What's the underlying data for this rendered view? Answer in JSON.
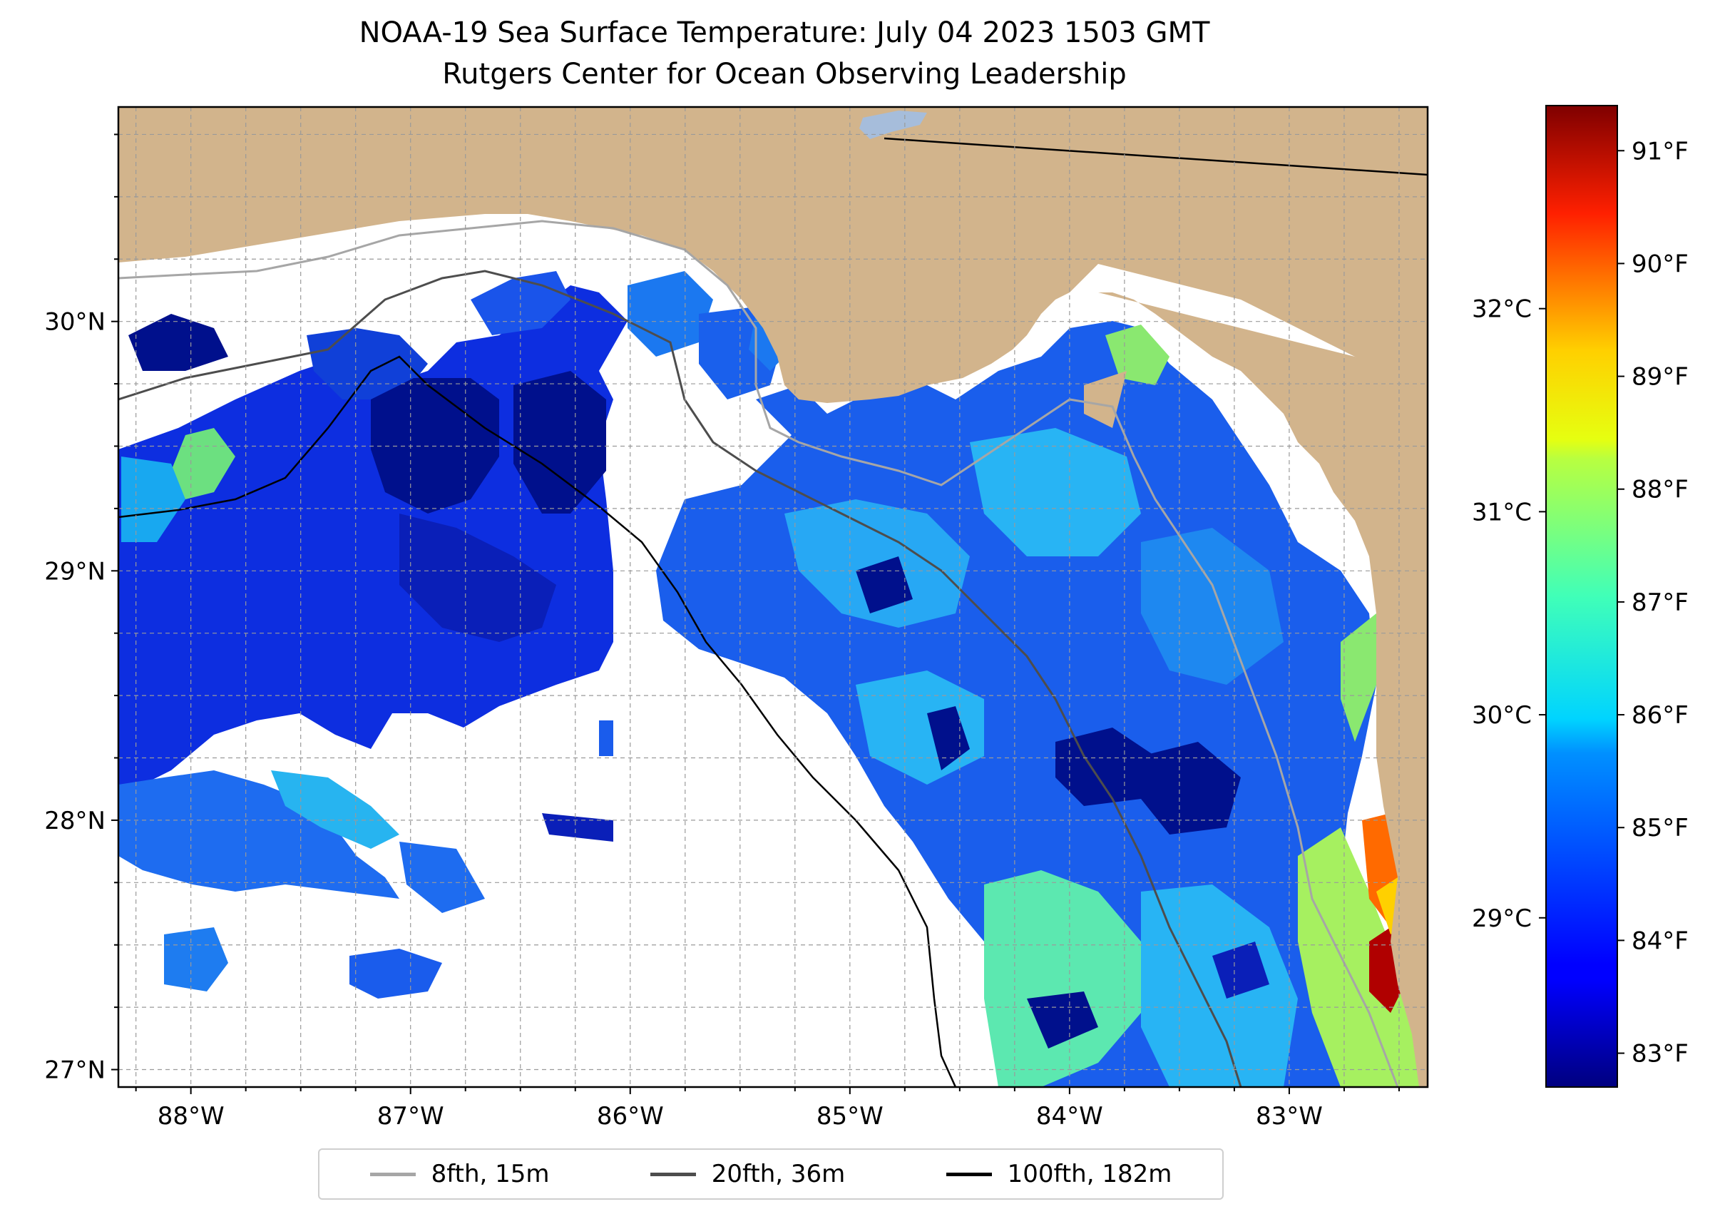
{
  "title": {
    "line1": "NOAA-19 Sea Surface Temperature: July 04 2023 1503 GMT",
    "line2": "Rutgers Center for Ocean Observing Leadership"
  },
  "map": {
    "lon_range": [
      -88.33,
      -82.37
    ],
    "lat_range": [
      26.93,
      30.86
    ],
    "lon_ticks": [
      {
        "value": -88,
        "label": "88°W"
      },
      {
        "value": -87,
        "label": "87°W"
      },
      {
        "value": -86,
        "label": "86°W"
      },
      {
        "value": -85,
        "label": "85°W"
      },
      {
        "value": -84,
        "label": "84°W"
      },
      {
        "value": -83,
        "label": "83°W"
      }
    ],
    "lat_ticks": [
      {
        "value": 30,
        "label": "30°N"
      },
      {
        "value": 29,
        "label": "29°N"
      },
      {
        "value": 28,
        "label": "28°N"
      },
      {
        "value": 27,
        "label": "27°N"
      }
    ],
    "colors": {
      "land": "#d2b48c",
      "ocean_nodata": "#ffffff",
      "lake": "#a6bddb"
    }
  },
  "colorbar": {
    "f_ticks": [
      {
        "value": 91,
        "label": "91°F"
      },
      {
        "value": 90,
        "label": "90°F"
      },
      {
        "value": 89,
        "label": "89°F"
      },
      {
        "value": 88,
        "label": "88°F"
      },
      {
        "value": 87,
        "label": "87°F"
      },
      {
        "value": 86,
        "label": "86°F"
      },
      {
        "value": 85,
        "label": "85°F"
      },
      {
        "value": 84,
        "label": "84°F"
      },
      {
        "value": 83,
        "label": "83°F"
      }
    ],
    "c_ticks": [
      {
        "value": 32,
        "label": "32°C"
      },
      {
        "value": 31,
        "label": "31°C"
      },
      {
        "value": 30,
        "label": "30°C"
      },
      {
        "value": 29,
        "label": "29°C"
      }
    ],
    "range_f": [
      82.7,
      91.4
    ],
    "colormap": "jet"
  },
  "legend": [
    {
      "label": "8fth, 15m",
      "color": "#a6a6a6"
    },
    {
      "label": "20fth, 36m",
      "color": "#4d4d4d"
    },
    {
      "label": "100fth, 182m",
      "color": "#000000"
    }
  ]
}
